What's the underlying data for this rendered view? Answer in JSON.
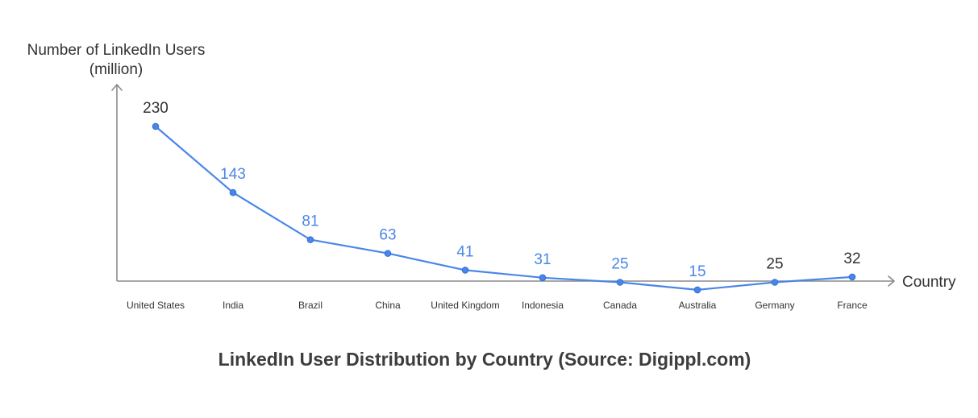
{
  "chart_data": {
    "type": "line",
    "title": "LinkedIn User Distribution by Country (Source: Digippl.com)",
    "ylabel_lines": [
      "Number of LinkedIn Users",
      "(million)"
    ],
    "xlabel": "Country",
    "categories": [
      "United States",
      "India",
      "Brazil",
      "China",
      "United Kingdom",
      "Indonesia",
      "Canada",
      "Australia",
      "Germany",
      "France"
    ],
    "series": [
      {
        "values": [
          230,
          143,
          81,
          63,
          41,
          31,
          25,
          15,
          25,
          32
        ],
        "color": "#4a86e8"
      }
    ],
    "data_label_colors": [
      "#333333",
      "#4a86e8",
      "#4a86e8",
      "#4a86e8",
      "#4a86e8",
      "#4a86e8",
      "#4a86e8",
      "#4a86e8",
      "#333333",
      "#333333"
    ],
    "ylim": [
      0,
      250
    ],
    "grid": false,
    "legend": "none"
  }
}
